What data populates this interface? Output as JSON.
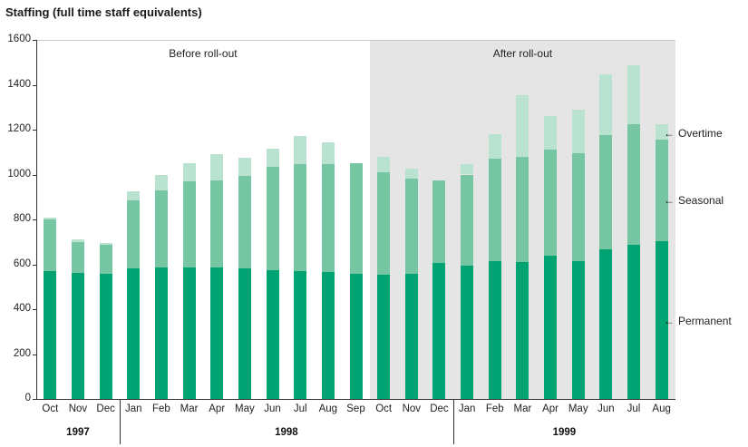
{
  "chart_data": {
    "type": "bar",
    "stacked": true,
    "title": "Staffing (full time staff equivalents)",
    "ylim": [
      0,
      1600
    ],
    "ytick_step": 200,
    "grid": false,
    "months": [
      "Oct",
      "Nov",
      "Dec",
      "Jan",
      "Feb",
      "Mar",
      "Apr",
      "May",
      "Jun",
      "Jul",
      "Aug",
      "Sep",
      "Oct",
      "Nov",
      "Dec",
      "Jan",
      "Feb",
      "Mar",
      "Apr",
      "May",
      "Jun",
      "Jul",
      "Aug"
    ],
    "year_groups": [
      {
        "label": "1997",
        "start": 0,
        "count": 3
      },
      {
        "label": "1998",
        "start": 3,
        "count": 12
      },
      {
        "label": "1999",
        "start": 15,
        "count": 8
      }
    ],
    "series": [
      {
        "name": "Permanent",
        "color": "#00a473",
        "values": [
          570,
          560,
          558,
          580,
          585,
          585,
          585,
          580,
          575,
          570,
          565,
          558,
          552,
          556,
          605,
          595,
          615,
          610,
          640,
          615,
          665,
          685,
          705
        ]
      },
      {
        "name": "Seasonal",
        "color": "#76c6a3",
        "values": [
          230,
          140,
          127,
          305,
          345,
          385,
          390,
          415,
          460,
          475,
          480,
          492,
          458,
          424,
          370,
          405,
          455,
          470,
          470,
          480,
          510,
          540,
          450
        ]
      },
      {
        "name": "Overtime",
        "color": "#b9e2d0",
        "values": [
          10,
          10,
          10,
          40,
          70,
          80,
          115,
          80,
          80,
          125,
          100,
          0,
          70,
          45,
          0,
          45,
          110,
          275,
          150,
          195,
          270,
          260,
          70
        ]
      }
    ],
    "regions": [
      {
        "label": "Before roll-out",
        "start_index": 0,
        "end_index": 11,
        "shaded": false,
        "shade_color": ""
      },
      {
        "label": "After roll-out",
        "start_index": 12,
        "end_index": 22,
        "shaded": true,
        "shade_color": "#e5e5e5"
      }
    ],
    "annotations": [
      {
        "label": "Overtime",
        "arrow": "←",
        "at_value": 1180
      },
      {
        "label": "Seasonal",
        "arrow": "←",
        "at_value": 880
      },
      {
        "label": "Permanent",
        "arrow": "←",
        "at_value": 345
      }
    ],
    "axis_color": "#333333",
    "top_border_color": "#c9c9c9"
  }
}
